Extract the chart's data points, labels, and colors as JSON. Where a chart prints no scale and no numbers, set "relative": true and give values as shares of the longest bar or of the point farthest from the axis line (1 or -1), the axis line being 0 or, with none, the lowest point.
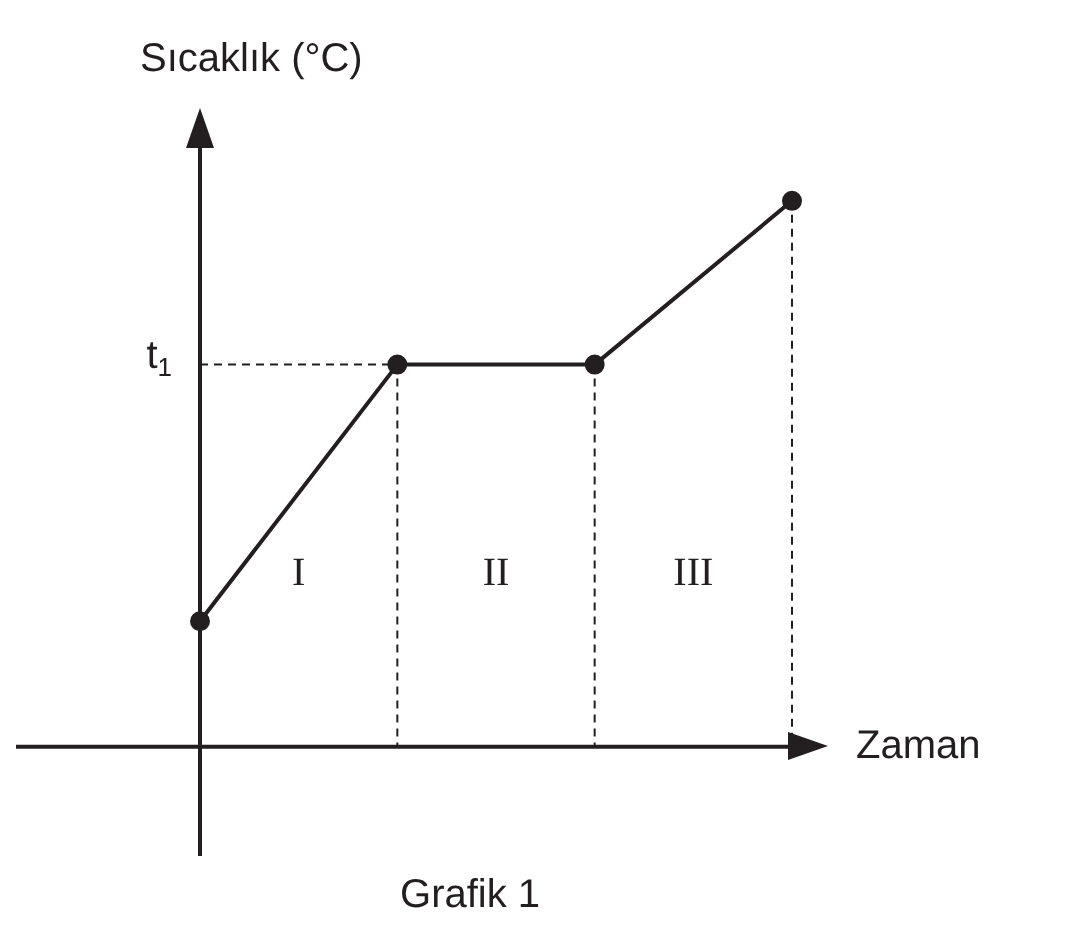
{
  "chart_data": {
    "type": "line",
    "title": "Grafik 1",
    "xlabel": "Zaman",
    "ylabel": "Sıcaklık (°C)",
    "relative": true,
    "categories": [
      null,
      null,
      null,
      null
    ],
    "series": [
      {
        "color": "#231f20",
        "values": [
          0.23,
          0.7,
          0.7,
          1
        ]
      }
    ],
    "ref_lines": [
      {
        "axis": "y",
        "value": 0.7,
        "label": "t$_{1}$",
        "line_style": "dashed"
      }
    ],
    "annotations": [
      "I",
      "II",
      "III"
    ],
    "marker": "circle",
    "line_style": "solid",
    "legend": false,
    "grid": "x"
  }
}
